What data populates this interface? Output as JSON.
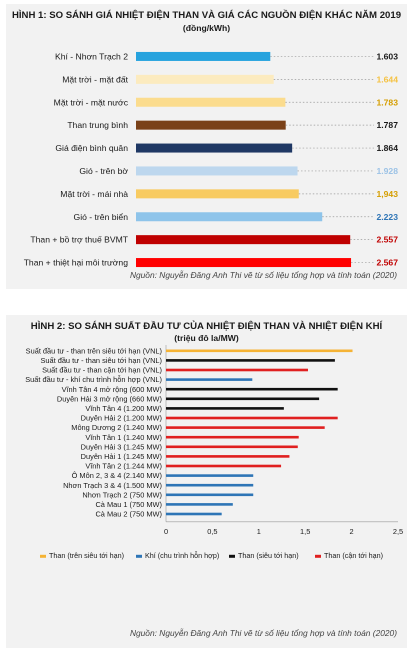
{
  "figure1": {
    "title": "HÌNH 1: SO SÁNH GIÁ NHIỆT ĐIỆN THAN VÀ GIÁ CÁC NGUỒN ĐIỆN KHÁC NĂM 2019",
    "unit": "(đồng/kWh)",
    "source": "Nguồn: Nguyễn Đăng Anh Thi vẽ từ số liệu tổng hợp và tính toán (2020)",
    "chart_data": {
      "type": "bar",
      "orientation": "horizontal",
      "categories": [
        "Khí - Nhơn Trạch 2",
        "Mặt trời - mặt đất",
        "Mặt trời - mặt nước",
        "Than trung bình",
        "Giá điện bình quân",
        "Gió - trên bờ",
        "Mặt trời - mái nhà",
        "Gió - trên biển",
        "Than + bồ trợ thuế BVMT",
        "Than + thiệt hại môi trường"
      ],
      "values": [
        1603,
        1644,
        1783,
        1787,
        1864,
        1928,
        1943,
        2223,
        2557,
        2567
      ],
      "value_labels": [
        "1.603",
        "1.644",
        "1.783",
        "1.787",
        "1.864",
        "1.928",
        "1,943",
        "2.223",
        "2.557",
        "2.567"
      ],
      "colors": [
        "#27a3de",
        "#fcebbf",
        "#fbdc8e",
        "#7a4118",
        "#1f3864",
        "#bdd7ee",
        "#f8cb61",
        "#8ec4ea",
        "#bf0000",
        "#ff0000"
      ],
      "label_colors": [
        "#1a1a1a",
        "#f5c242",
        "#d59e00",
        "#1a1a1a",
        "#1a1a1a",
        "#9dc3e6",
        "#d59e00",
        "#2e75b6",
        "#c00000",
        "#c00000"
      ],
      "xlim": [
        0,
        2650
      ]
    }
  },
  "figure2": {
    "title": "HÌNH 2: SO SÁNH SUẤT ĐẦU TƯ CỦA NHIỆT ĐIỆN THAN VÀ NHIỆT ĐIỆN KHÍ",
    "unit": "(triệu đô la/MW)",
    "source": "Nguồn: Nguyễn Đăng Anh Thi vẽ từ số liệu tổng hợp và tính toán (2020)",
    "chart_data": {
      "type": "bar",
      "orientation": "horizontal",
      "categories": [
        "Suất đầu tư - than trên siêu tới hạn (VNL)",
        "Suất đầu tư - than siêu tới hạn (VNL)",
        "Suất đầu tư - than cận tới hạn (VNL)",
        "Suất đầu tư - khí chu trình hỗn hợp (VNL)",
        "Vĩnh Tân 4 mở rộng (600 MW)",
        "Duyên Hải 3 mở rộng (660 MW)",
        "Vĩnh Tân 4 (1.200 MW)",
        "Duyên Hải 2 (1.200 MW)",
        "Mông Dương 2 (1.240 MW)",
        "Vĩnh Tân 1 (1.240 MW)",
        "Duyên Hải 3 (1.245 MW)",
        "Duyên Hải 1 (1.245 MW)",
        "Vĩnh Tân 2 (1.244 MW)",
        "Ô Môn 2, 3 & 4 (2.140 MW)",
        "Nhơn Trạch 3 & 4 (1.500 MW)",
        "Nhơn Trạch 2 (750 MW)",
        "Cà Mau 1 (750 MW)",
        "Cà Mau 2 (750 MW)"
      ],
      "values": [
        2.01,
        1.82,
        1.53,
        0.93,
        1.85,
        1.65,
        1.27,
        1.85,
        1.71,
        1.43,
        1.42,
        1.33,
        1.24,
        0.94,
        0.94,
        0.94,
        0.72,
        0.6
      ],
      "series_index": [
        0,
        2,
        3,
        1,
        2,
        2,
        2,
        3,
        3,
        3,
        3,
        3,
        3,
        1,
        1,
        1,
        1,
        1
      ],
      "series": [
        {
          "name": "Than (trên siêu tới hạn)",
          "color": "#f5b335"
        },
        {
          "name": "Khí (chu trình hỗn hợp)",
          "color": "#2e75b6"
        },
        {
          "name": "Than (siêu tới hạn)",
          "color": "#111111"
        },
        {
          "name": "Than (cận tới hạn)",
          "color": "#e02020"
        }
      ],
      "xticks": [
        "0",
        "0,5",
        "1",
        "1,5",
        "2",
        "2,5"
      ],
      "xlim": [
        0,
        2.5
      ]
    }
  }
}
